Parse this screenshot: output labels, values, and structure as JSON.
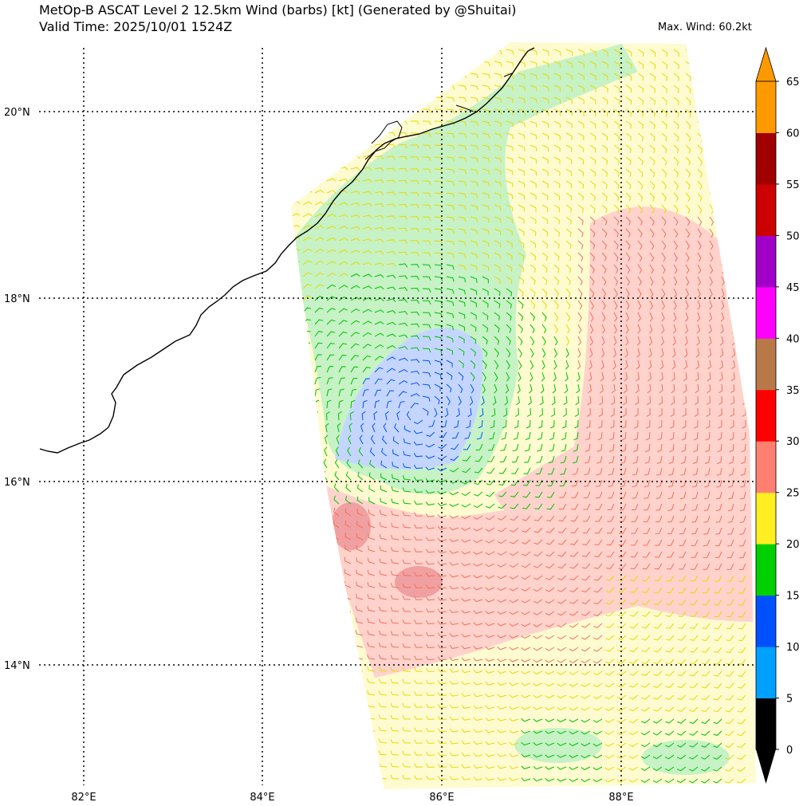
{
  "title": {
    "line1": "MetOp-B ASCAT Level 2 12.5km Wind (barbs) [kt] (Generated by @Shuitai)",
    "line2": "Valid Time: 2025/10/01 1524Z"
  },
  "max_wind": "Max. Wind: 60.2kt",
  "lat_labels": [
    "20°N",
    "18°N",
    "16°N",
    "14°N"
  ],
  "lon_labels": [
    "82°E",
    "84°E",
    "86°E",
    "88°E"
  ],
  "colorbar": {
    "ticks": [
      "0",
      "5",
      "10",
      "15",
      "20",
      "25",
      "30",
      "35",
      "40",
      "45",
      "50",
      "55",
      "60",
      "65"
    ],
    "bins": [
      {
        "from": 0,
        "to": 5,
        "color": "#000000"
      },
      {
        "from": 5,
        "to": 10,
        "color": "#00a0ff"
      },
      {
        "from": 10,
        "to": 15,
        "color": "#0050ff"
      },
      {
        "from": 15,
        "to": 20,
        "color": "#00d000"
      },
      {
        "from": 20,
        "to": 25,
        "color": "#ffee22"
      },
      {
        "from": 25,
        "to": 30,
        "color": "#ff8070"
      },
      {
        "from": 30,
        "to": 35,
        "color": "#ff0000"
      },
      {
        "from": 35,
        "to": 40,
        "color": "#b87848"
      },
      {
        "from": 40,
        "to": 45,
        "color": "#ff00ff"
      },
      {
        "from": 45,
        "to": 50,
        "color": "#a000c8"
      },
      {
        "from": 50,
        "to": 55,
        "color": "#cc0000"
      },
      {
        "from": 55,
        "to": 60,
        "color": "#a00000"
      },
      {
        "from": 60,
        "to": 65,
        "color": "#ff9900"
      }
    ],
    "under_color": "#000000",
    "over_color": "#ff9900"
  }
}
